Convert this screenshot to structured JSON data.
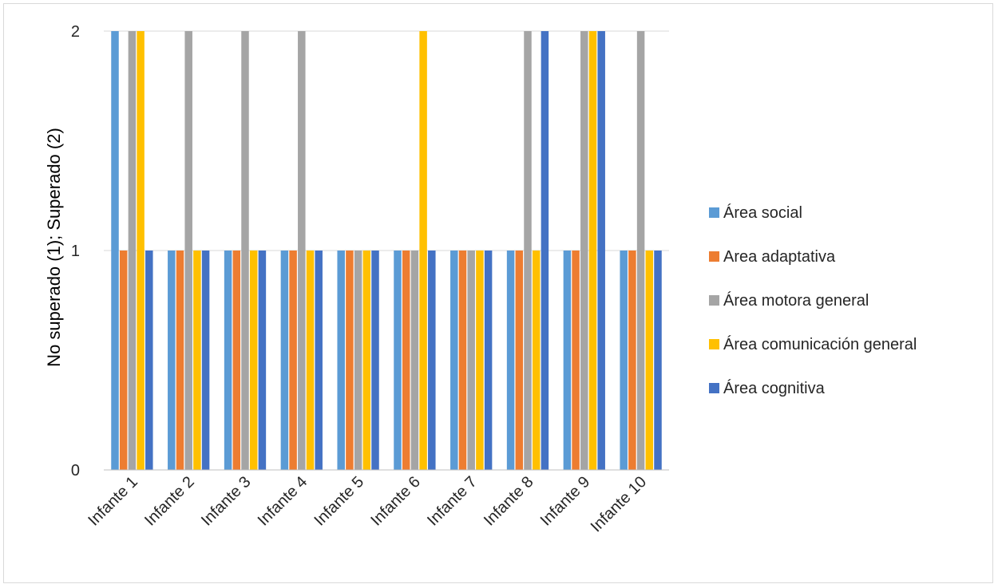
{
  "chart_data": {
    "type": "bar",
    "title": "",
    "xlabel": "",
    "ylabel": "No superado (1); Superado (2)",
    "ylim": [
      0,
      2
    ],
    "yticks": [
      0,
      1,
      2
    ],
    "grid": true,
    "legend_position": "right",
    "categories": [
      "Infante 1",
      "Infante 2",
      "Infante 3",
      "Infante 4",
      "Infante 5",
      "Infante 6",
      "Infante 7",
      "Infante 8",
      "Infante 9",
      "Infante 10"
    ],
    "series": [
      {
        "name": "Área social",
        "color": "#5B9BD5",
        "values": [
          2,
          1,
          1,
          1,
          1,
          1,
          1,
          1,
          1,
          1
        ]
      },
      {
        "name": "Area adaptativa",
        "color": "#ED7D31",
        "values": [
          1,
          1,
          1,
          1,
          1,
          1,
          1,
          1,
          1,
          1
        ]
      },
      {
        "name": "Área motora general",
        "color": "#A5A5A5",
        "values": [
          2,
          2,
          2,
          2,
          1,
          1,
          1,
          2,
          2,
          2
        ]
      },
      {
        "name": "Área comunicación general",
        "color": "#FFC000",
        "values": [
          2,
          1,
          1,
          1,
          1,
          2,
          1,
          1,
          2,
          1
        ]
      },
      {
        "name": "Área cognitiva",
        "color": "#4472C4",
        "values": [
          1,
          1,
          1,
          1,
          1,
          1,
          1,
          2,
          2,
          1
        ]
      }
    ]
  }
}
